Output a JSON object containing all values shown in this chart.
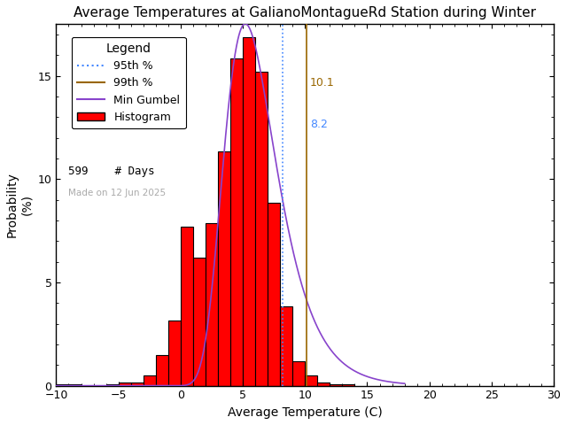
{
  "title": "Average Temperatures at GalianoMontagueRd Station during Winter",
  "xlabel": "Average Temperature (C)",
  "ylabels": [
    "Probability",
    "(%)"
  ],
  "xlim": [
    -10,
    30
  ],
  "ylim": [
    0,
    17.5
  ],
  "xticks": [
    -10,
    -5,
    0,
    5,
    10,
    15,
    20,
    25,
    30
  ],
  "yticks": [
    0,
    5,
    10,
    15
  ],
  "bin_lefts": [
    -10,
    -9,
    -8,
    -7,
    -6,
    -5,
    -4,
    -3,
    -2,
    -1,
    0,
    1,
    2,
    3,
    4,
    5,
    6,
    7,
    8,
    9,
    10,
    11,
    12,
    13
  ],
  "bin_probs": [
    0.05,
    0.05,
    0.0,
    0.0,
    0.05,
    0.17,
    0.17,
    0.5,
    1.5,
    3.17,
    7.68,
    6.18,
    7.85,
    11.35,
    15.86,
    16.86,
    15.19,
    8.85,
    3.84,
    1.17,
    0.5,
    0.17,
    0.05,
    0.05
  ],
  "n_days": 599,
  "p95_val": 8.2,
  "p99_val": 10.1,
  "gumbel_mu": 5.2,
  "gumbel_beta": 2.1,
  "bar_color": "#ff0000",
  "bar_edgecolor": "#000000",
  "gumbel_color": "#8844cc",
  "p95_color": "#4488ff",
  "p99_color": "#996600",
  "legend_fontsize": 9,
  "title_fontsize": 11,
  "axis_fontsize": 10,
  "watermark": "Made on 12 Jun 2025",
  "watermark_color": "#aaaaaa",
  "background_color": "#ffffff"
}
